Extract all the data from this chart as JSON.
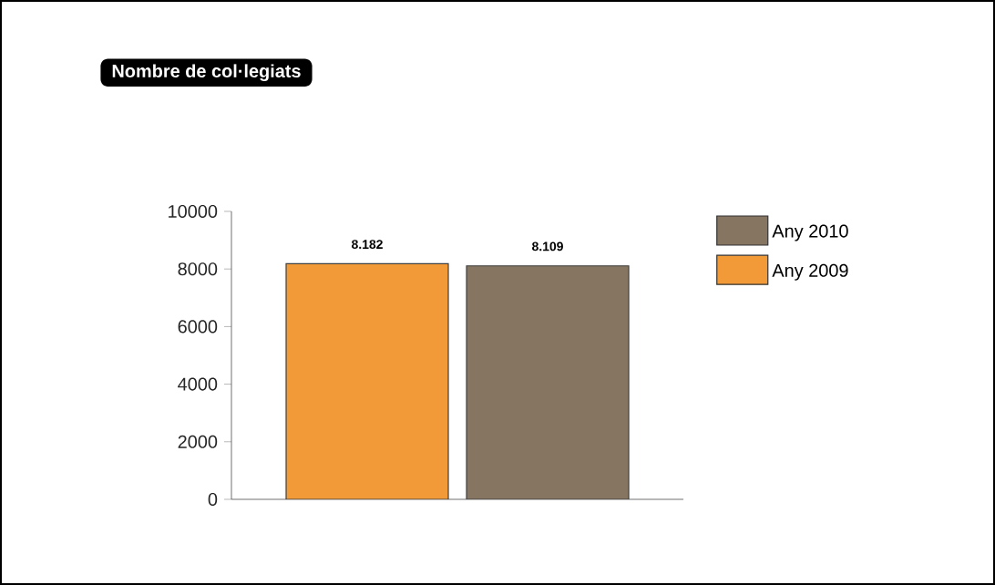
{
  "chart_data": {
    "type": "bar",
    "title": "Nombre de col·legiats",
    "categories": [
      null
    ],
    "series": [
      {
        "name": "Any 2009",
        "color": "#f29a38",
        "values": [
          8182
        ],
        "value_labels": [
          "8.182"
        ]
      },
      {
        "name": "Any 2010",
        "color": "#857561",
        "values": [
          8109
        ],
        "value_labels": [
          "8.109"
        ]
      }
    ],
    "ylim": [
      0,
      10000
    ],
    "yticks": [
      0,
      2000,
      4000,
      6000,
      8000,
      10000
    ],
    "legend": "right",
    "grid": false
  }
}
